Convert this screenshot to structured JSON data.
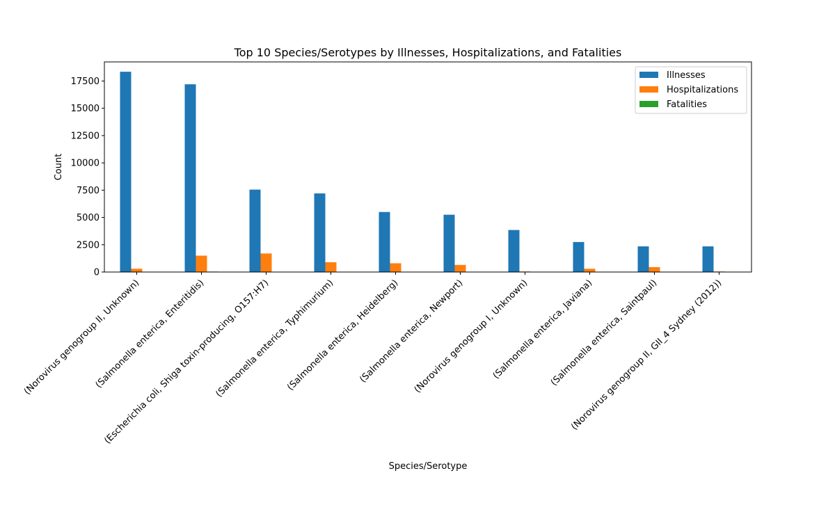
{
  "chart_data": {
    "type": "bar",
    "title": "Top 10 Species/Serotypes by Illnesses, Hospitalizations, and Fatalities",
    "xlabel": "Species/Serotype",
    "ylabel": "Count",
    "ylim": [
      0,
      19250
    ],
    "yticks": [
      0,
      2500,
      5000,
      7500,
      10000,
      12500,
      15000,
      17500
    ],
    "grid": false,
    "legend_position": "top-right",
    "categories": [
      "(Norovirus genogroup II, Unknown)",
      "(Salmonella enterica, Enteritidis)",
      "(Escherichia coli, Shiga toxin-producing, O157:H7)",
      "(Salmonella enterica, Typhimurium)",
      "(Salmonella enterica, Heidelberg)",
      "(Salmonella enterica, Newport)",
      "(Norovirus genogroup I, Unknown)",
      "(Salmonella enterica, Javiana)",
      "(Salmonella enterica, Saintpaul)",
      "(Norovirus genogroup II, GII_4 Sydney (2012))"
    ],
    "series": [
      {
        "name": "Illnesses",
        "color": "#1f77b4",
        "values": [
          18350,
          17200,
          7550,
          7200,
          5500,
          5250,
          3850,
          2750,
          2350,
          2350
        ]
      },
      {
        "name": "Hospitalizations",
        "color": "#ff7f0e",
        "values": [
          300,
          1500,
          1700,
          900,
          800,
          650,
          50,
          300,
          450,
          50
        ]
      },
      {
        "name": "Fatalities",
        "color": "#2ca02c",
        "values": [
          5,
          40,
          30,
          20,
          20,
          20,
          10,
          5,
          5,
          5
        ]
      }
    ]
  }
}
